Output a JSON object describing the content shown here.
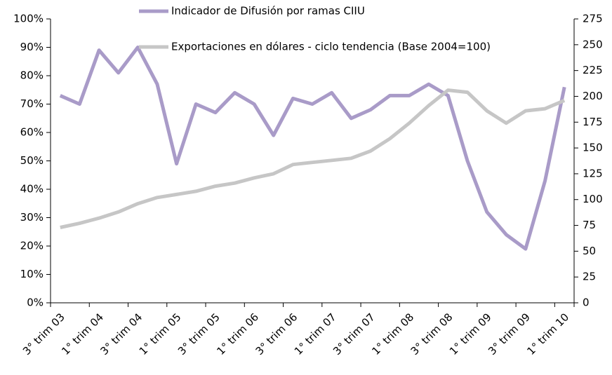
{
  "chart_data": {
    "type": "line",
    "categories": [
      "3° trim 03",
      null,
      "1° trim 04",
      null,
      "3° trim 04",
      null,
      "1° trim 05",
      null,
      "3° trim 05",
      null,
      "1° trim 06",
      null,
      "3° trim 06",
      null,
      "1° trim 07",
      null,
      "3° trim 07",
      null,
      "1° trim 08",
      null,
      "3° trim 08",
      null,
      "1° trim 09",
      null,
      "3° trim 09",
      null,
      "1° trim 10"
    ],
    "series": [
      {
        "name": "Indicador de Difusión por ramas CIIU",
        "color": "#a99bc8",
        "axis": "y",
        "values": [
          73,
          70,
          89,
          81,
          90,
          77,
          49,
          70,
          67,
          74,
          70,
          59,
          72,
          70,
          74,
          65,
          68,
          73,
          73,
          77,
          73,
          50,
          32,
          24,
          19,
          43,
          76
        ]
      },
      {
        "name": "Exportaciones en dólares - ciclo tendencia (Base 2004=100)",
        "color": "#c6c6c6",
        "axis": "y2",
        "values": [
          73,
          77,
          82,
          88,
          96,
          102,
          105,
          108,
          113,
          116,
          121,
          125,
          134,
          136,
          138,
          140,
          147,
          159,
          174,
          191,
          206,
          204,
          186,
          174,
          186,
          188,
          196
        ]
      }
    ],
    "ylim": [
      0,
      100
    ],
    "yticks": [
      {
        "value": 0,
        "label": "0%"
      },
      {
        "value": 10,
        "label": "10%"
      },
      {
        "value": 20,
        "label": "20%"
      },
      {
        "value": 30,
        "label": "30%"
      },
      {
        "value": 40,
        "label": "40%"
      },
      {
        "value": 50,
        "label": "50%"
      },
      {
        "value": 60,
        "label": "60%"
      },
      {
        "value": 70,
        "label": "70%"
      },
      {
        "value": 80,
        "label": "80%"
      },
      {
        "value": 90,
        "label": "90%"
      },
      {
        "value": 100,
        "label": "100%"
      }
    ],
    "y2lim": [
      0,
      275
    ],
    "y2ticks": [
      0,
      25,
      50,
      75,
      100,
      125,
      150,
      175,
      200,
      225,
      250,
      275
    ],
    "grid": false,
    "legend": "top"
  }
}
